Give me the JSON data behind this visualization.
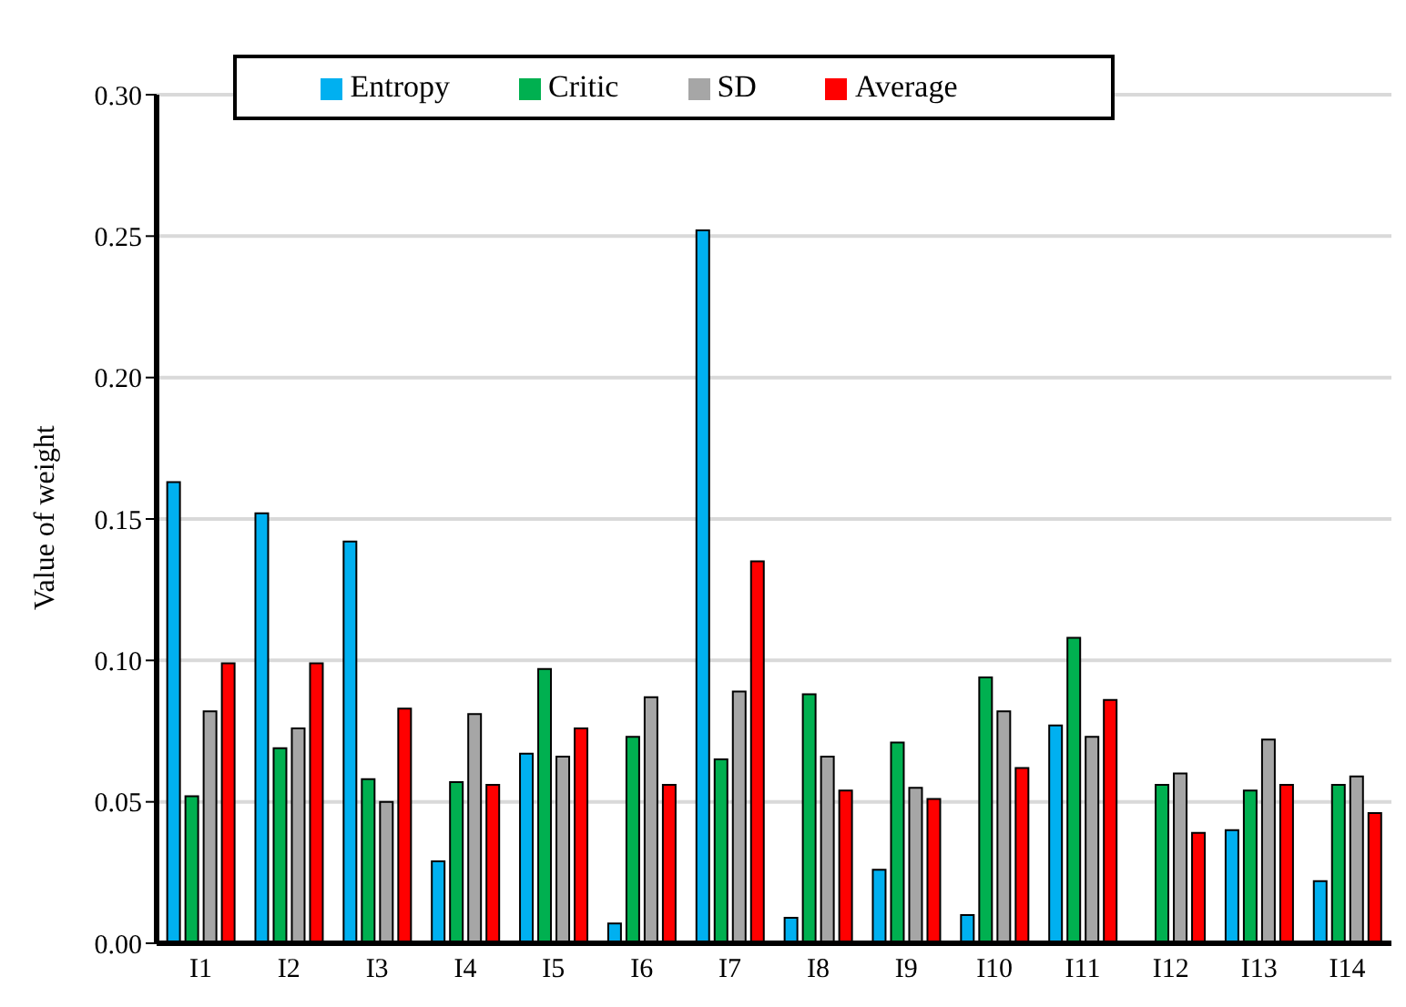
{
  "chart_data": {
    "type": "bar",
    "ylabel": "Value of weight",
    "categories": [
      "I1",
      "I2",
      "I3",
      "I4",
      "I5",
      "I6",
      "I7",
      "I8",
      "I9",
      "I10",
      "I11",
      "I12",
      "I13",
      "I14"
    ],
    "series": [
      {
        "name": "Entropy",
        "color": "#00b0f0",
        "values": [
          0.163,
          0.152,
          0.142,
          0.029,
          0.067,
          0.007,
          0.252,
          0.009,
          0.026,
          0.01,
          0.077,
          null,
          0.04,
          0.022
        ]
      },
      {
        "name": "Critic",
        "color": "#00b050",
        "values": [
          0.052,
          0.069,
          0.058,
          0.057,
          0.097,
          0.073,
          0.065,
          0.088,
          0.071,
          0.094,
          0.108,
          0.056,
          0.054,
          0.056
        ]
      },
      {
        "name": "SD",
        "color": "#a6a6a6",
        "values": [
          0.082,
          0.076,
          0.05,
          0.081,
          0.066,
          0.087,
          0.089,
          0.066,
          0.055,
          0.082,
          0.073,
          0.06,
          0.072,
          0.059
        ]
      },
      {
        "name": "Average",
        "color": "#ff0000",
        "values": [
          0.099,
          0.099,
          0.083,
          0.056,
          0.076,
          0.056,
          0.135,
          0.054,
          0.051,
          0.062,
          0.086,
          0.039,
          0.056,
          0.046
        ]
      }
    ],
    "ylim": [
      0,
      0.3
    ],
    "yticks": [
      {
        "value": 0,
        "label": "0.00"
      },
      {
        "value": 0.05,
        "label": "0.05"
      },
      {
        "value": 0.1,
        "label": "0.10"
      },
      {
        "value": 0.15,
        "label": "0.15"
      },
      {
        "value": 0.2,
        "label": "0.20"
      },
      {
        "value": 0.25,
        "label": "0.25"
      },
      {
        "value": 0.3,
        "label": "0.30"
      }
    ],
    "grid": "y",
    "legend": "top"
  }
}
